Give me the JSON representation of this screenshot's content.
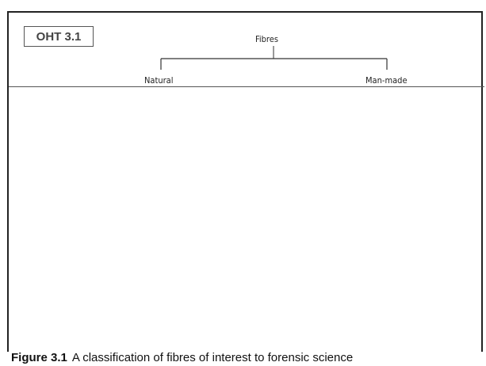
{
  "badge": {
    "label": "OHT 3.1"
  },
  "tree": {
    "root": "Fibres",
    "children": [
      "Natural",
      "Man-made"
    ]
  },
  "caption": {
    "number": "Figure 3.1",
    "text": "A classification of fibres of interest to forensic science"
  }
}
